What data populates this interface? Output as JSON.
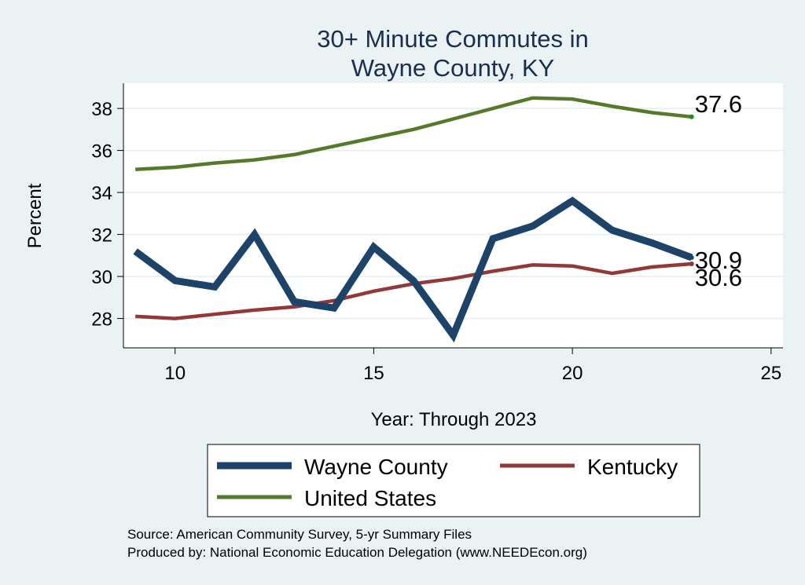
{
  "chart_data": {
    "type": "line",
    "title": [
      "30+ Minute Commutes in",
      "Wayne County, KY"
    ],
    "xlabel": "Year: Through 2023",
    "ylabel": "Percent",
    "xlim": [
      8.7,
      25.3
    ],
    "ylim": [
      26.6,
      39.2
    ],
    "xticks": [
      10,
      15,
      20,
      25
    ],
    "yticks": [
      28,
      30,
      32,
      34,
      36,
      38
    ],
    "grid": true,
    "legend_position": "bottom",
    "series": [
      {
        "name": "Wayne County",
        "color": "#1e4368",
        "x": [
          9,
          10,
          11,
          12,
          13,
          14,
          15,
          16,
          17,
          18,
          19,
          20,
          21,
          22,
          23
        ],
        "y": [
          31.2,
          29.8,
          29.5,
          32.0,
          28.8,
          28.5,
          31.4,
          29.8,
          27.2,
          31.8,
          32.4,
          33.6,
          32.2,
          31.6,
          30.9
        ],
        "end_label": "30.9"
      },
      {
        "name": "Kentucky",
        "color": "#923838",
        "x": [
          9,
          10,
          11,
          12,
          13,
          14,
          15,
          16,
          17,
          18,
          19,
          20,
          21,
          22,
          23
        ],
        "y": [
          28.1,
          28.0,
          28.2,
          28.4,
          28.55,
          28.85,
          29.3,
          29.65,
          29.9,
          30.25,
          30.55,
          30.5,
          30.15,
          30.45,
          30.6
        ],
        "end_label": "30.6"
      },
      {
        "name": "United States",
        "color": "#557a2c",
        "x": [
          9,
          10,
          11,
          12,
          13,
          14,
          15,
          16,
          17,
          18,
          19,
          20,
          21,
          22,
          23
        ],
        "y": [
          35.1,
          35.2,
          35.4,
          35.55,
          35.8,
          36.2,
          36.6,
          37.0,
          37.5,
          38.0,
          38.5,
          38.45,
          38.1,
          37.8,
          37.6
        ],
        "end_label": "37.6"
      }
    ],
    "legend": [
      "Wayne County",
      "Kentucky",
      "United States"
    ],
    "source": [
      "Source: American Community Survey, 5-yr Summary Files",
      "Produced by: National Economic Education Delegation (www.NEEDEcon.org)"
    ]
  }
}
